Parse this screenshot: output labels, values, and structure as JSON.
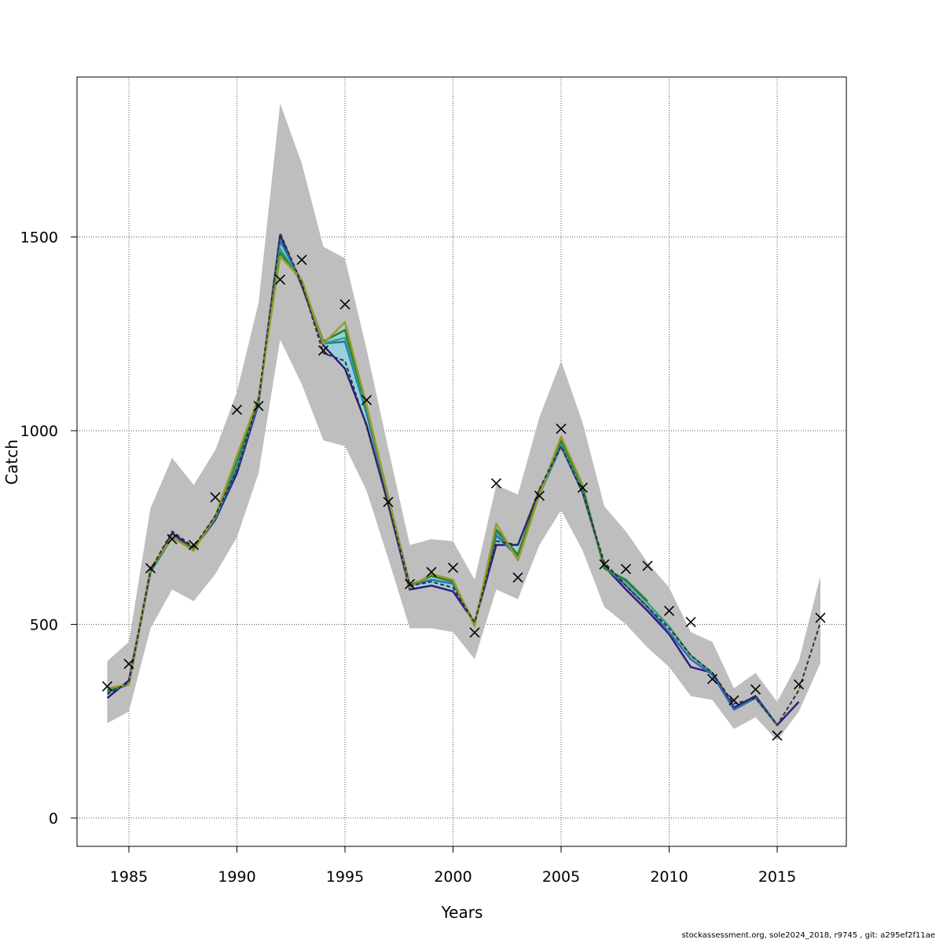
{
  "chart_data": {
    "type": "line",
    "xlabel": "Years",
    "ylabel": "Catch",
    "xlim": [
      1982.6,
      2018.2
    ],
    "ylim": [
      -73,
      1913
    ],
    "x_ticks": [
      1985,
      1990,
      1995,
      2000,
      2005,
      2010,
      2015
    ],
    "y_ticks": [
      0,
      500,
      1000,
      1500
    ],
    "grid": true,
    "colors": {
      "band": "#bebebe",
      "inner_band": "#8fd4e0",
      "observed": "#000000",
      "median": "#333333",
      "run_navy": "#2c1d80",
      "run_blue": "#2a6fb0",
      "run_teal": "#2aa68a",
      "run_green": "#2e7d32",
      "run_olive": "#9a9a2a"
    },
    "band": {
      "x": [
        1984,
        1985,
        1986,
        1987,
        1988,
        1989,
        1990,
        1991,
        1992,
        1993,
        1994,
        1995,
        1996,
        1997,
        1998,
        1999,
        2000,
        2001,
        2002,
        2003,
        2004,
        2005,
        2006,
        2007,
        2008,
        2009,
        2010,
        2011,
        2012,
        2013,
        2014,
        2015,
        2016,
        2017
      ],
      "upper": [
        405,
        455,
        800,
        930,
        860,
        950,
        1100,
        1330,
        1845,
        1690,
        1475,
        1445,
        1210,
        955,
        705,
        720,
        715,
        615,
        860,
        835,
        1035,
        1180,
        1020,
        805,
        740,
        660,
        595,
        480,
        455,
        335,
        375,
        300,
        405,
        625
      ],
      "lower": [
        245,
        275,
        490,
        590,
        560,
        630,
        725,
        890,
        1235,
        1120,
        975,
        960,
        845,
        670,
        490,
        490,
        480,
        410,
        590,
        565,
        705,
        795,
        690,
        545,
        500,
        440,
        390,
        315,
        305,
        230,
        260,
        200,
        275,
        400
      ]
    },
    "observed": {
      "x": [
        1984,
        1985,
        1986,
        1987,
        1988,
        1989,
        1990,
        1991,
        1992,
        1993,
        1994,
        1995,
        1996,
        1997,
        1998,
        1999,
        2000,
        2001,
        2002,
        2003,
        2004,
        2005,
        2006,
        2007,
        2008,
        2009,
        2010,
        2011,
        2012,
        2013,
        2014,
        2015,
        2016,
        2017
      ],
      "y": [
        340,
        398,
        645,
        720,
        705,
        828,
        1054,
        1064,
        1390,
        1441,
        1207,
        1326,
        1079,
        816,
        604,
        635,
        646,
        479,
        864,
        621,
        832,
        1005,
        853,
        655,
        643,
        651,
        535,
        506,
        359,
        304,
        332,
        213,
        345,
        517
      ]
    },
    "median_line": {
      "x": [
        1984,
        1985,
        1986,
        1987,
        1988,
        1989,
        1990,
        1991,
        1992,
        1993,
        1994,
        1995,
        1996,
        1997,
        1998,
        1999,
        2000,
        2001,
        2002,
        2003,
        2004,
        2005,
        2006,
        2007,
        2008,
        2009,
        2010,
        2011,
        2012,
        2013,
        2014,
        2015,
        2016,
        2017
      ],
      "y": [
        320,
        350,
        640,
        740,
        700,
        780,
        900,
        1080,
        1510,
        1380,
        1200,
        1180,
        1010,
        810,
        600,
        610,
        595,
        505,
        715,
        705,
        850,
        960,
        840,
        660,
        600,
        545,
        490,
        420,
        375,
        295,
        310,
        240,
        330,
        505
      ]
    },
    "series": [
      {
        "x": [
          1984,
          1985,
          1986,
          1987,
          1988,
          1989,
          1990,
          1991,
          1992,
          1993,
          1994,
          1995,
          1996,
          1997,
          1998,
          1999,
          2000,
          2001,
          2002,
          2003,
          2004,
          2005,
          2006,
          2007,
          2008,
          2009,
          2010,
          2011,
          2012,
          2013,
          2014,
          2015,
          2016
        ],
        "y": [
          310,
          355,
          635,
          735,
          695,
          770,
          890,
          1070,
          1505,
          1375,
          1220,
          1160,
          1015,
          810,
          590,
          600,
          585,
          505,
          705,
          705,
          845,
          960,
          840,
          650,
          590,
          535,
          475,
          390,
          375,
          285,
          315,
          240,
          300
        ]
      },
      {
        "x": [
          1984,
          1985,
          1986,
          1987,
          1988,
          1989,
          1990,
          1991,
          1992,
          1993,
          1994,
          1995,
          1996,
          1997,
          1998,
          1999,
          2000,
          2001,
          2002,
          2003,
          2004,
          2005,
          2006,
          2007,
          2008,
          2009,
          2010,
          2011,
          2012,
          2013,
          2014,
          2015
        ],
        "y": [
          325,
          345,
          635,
          725,
          695,
          775,
          900,
          1075,
          1490,
          1385,
          1225,
          1230,
          1045,
          825,
          600,
          615,
          605,
          500,
          730,
          675,
          835,
          960,
          845,
          650,
          600,
          545,
          480,
          410,
          370,
          280,
          310,
          240
        ]
      },
      {
        "x": [
          1984,
          1985,
          1986,
          1987,
          1988,
          1989,
          1990,
          1991,
          1992,
          1993,
          1994,
          1995,
          1996,
          1997,
          1998,
          1999,
          2000,
          2001,
          2002,
          2003,
          2004,
          2005,
          2006,
          2007,
          2008,
          2009,
          2010,
          2011,
          2012
        ],
        "y": [
          330,
          345,
          640,
          725,
          695,
          775,
          915,
          1075,
          1470,
          1385,
          1225,
          1240,
          1055,
          830,
          600,
          625,
          610,
          500,
          740,
          675,
          835,
          970,
          850,
          645,
          610,
          555,
          495,
          420,
          375
        ]
      },
      {
        "x": [
          1984,
          1985,
          1986,
          1987,
          1988,
          1989,
          1990,
          1991,
          1992,
          1993,
          1994,
          1995,
          1996,
          1997,
          1998,
          1999,
          2000,
          2001,
          2002,
          2003,
          2004,
          2005,
          2006,
          2007,
          2008,
          2009
        ],
        "y": [
          330,
          345,
          640,
          725,
          695,
          780,
          925,
          1080,
          1460,
          1385,
          1230,
          1260,
          1060,
          830,
          600,
          625,
          610,
          500,
          745,
          680,
          840,
          975,
          855,
          645,
          615,
          560
        ]
      },
      {
        "x": [
          1984,
          1985,
          1986,
          1987,
          1988,
          1989,
          1990,
          1991,
          1992,
          1993,
          1994,
          1995,
          1996,
          1997,
          1998,
          1999,
          2000,
          2001,
          2002,
          2003,
          2004,
          2005,
          2006
        ],
        "y": [
          335,
          345,
          645,
          725,
          690,
          780,
          935,
          1085,
          1450,
          1390,
          1225,
          1280,
          1065,
          830,
          595,
          630,
          615,
          495,
          760,
          665,
          835,
          985,
          860
        ]
      }
    ]
  },
  "footer": "stockassessment.org, sole2024_2018, r9745 , git: a295ef2f11ae"
}
